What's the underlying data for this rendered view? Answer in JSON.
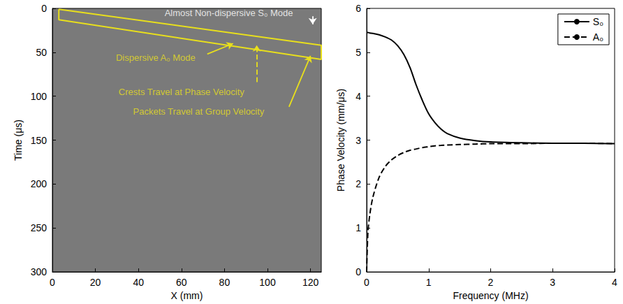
{
  "chart_data": [
    {
      "type": "image",
      "xlabel": "X (mm)",
      "ylabel": "Time (μs)",
      "xlim": [
        0,
        125
      ],
      "ylim": [
        0,
        300
      ],
      "xticks": [
        0,
        20,
        40,
        60,
        80,
        100,
        120
      ],
      "yticks": [
        0,
        50,
        100,
        150,
        200,
        250,
        300
      ],
      "box": {
        "color": "#e8df1c",
        "x": [
          3,
          125,
          125,
          3,
          3
        ],
        "y": [
          1,
          42,
          58,
          13,
          1
        ]
      },
      "annotations": [
        {
          "text": "Almost Non-dispersive S₀ Mode",
          "x": 82,
          "y": 5,
          "arrow_x": [
            121,
            121
          ],
          "arrow_y": [
            9,
            18
          ],
          "color": "#ffffff",
          "line_style": "solid"
        },
        {
          "text": "Dispersive A₀ Mode",
          "x": 48,
          "y": 56,
          "arrow_x": [
            72,
            84
          ],
          "arrow_y": [
            52,
            40
          ],
          "color": "#e8df1c",
          "line_style": "solid"
        },
        {
          "text": "Crests Travel at Phase Velocity",
          "x": 60,
          "y": 95,
          "arrow_x": [
            95,
            95
          ],
          "arrow_y": [
            84,
            42
          ],
          "color": "#e8df1c",
          "line_style": "dashed"
        },
        {
          "text": "Packets Travel at Group Velocity",
          "x": 68,
          "y": 117,
          "arrow_x": [
            110,
            120
          ],
          "arrow_y": [
            112,
            54
          ],
          "color": "#e8df1c",
          "line_style": "solid"
        }
      ]
    },
    {
      "type": "line",
      "xlabel": "Frequency (MHz)",
      "ylabel": "Phase Velocity (mm/μs)",
      "xlim": [
        0,
        4
      ],
      "ylim": [
        0,
        6
      ],
      "xticks": [
        0,
        1,
        2,
        3,
        4
      ],
      "yticks": [
        0,
        1,
        2,
        3,
        4,
        5,
        6
      ],
      "legend": "upper right",
      "x": [
        0,
        0.02,
        0.05,
        0.1,
        0.2,
        0.3,
        0.4,
        0.5,
        0.6,
        0.7,
        0.8,
        0.9,
        1.0,
        1.1,
        1.2,
        1.3,
        1.5,
        1.75,
        2,
        2.5,
        3,
        3.5,
        4
      ],
      "series": [
        {
          "name": "S₀",
          "color": "#000000",
          "line_style": "solid",
          "values": [
            5.45,
            5.45,
            5.44,
            5.43,
            5.4,
            5.35,
            5.28,
            5.15,
            4.95,
            4.65,
            4.25,
            3.9,
            3.6,
            3.4,
            3.25,
            3.15,
            3.05,
            2.99,
            2.96,
            2.94,
            2.93,
            2.93,
            2.92
          ]
        },
        {
          "name": "A₀",
          "color": "#000000",
          "line_style": "dashed",
          "values": [
            0,
            0.9,
            1.3,
            1.7,
            2.15,
            2.4,
            2.55,
            2.65,
            2.72,
            2.77,
            2.8,
            2.83,
            2.85,
            2.87,
            2.88,
            2.89,
            2.9,
            2.91,
            2.92,
            2.92,
            2.93,
            2.93,
            2.92
          ]
        }
      ]
    }
  ]
}
